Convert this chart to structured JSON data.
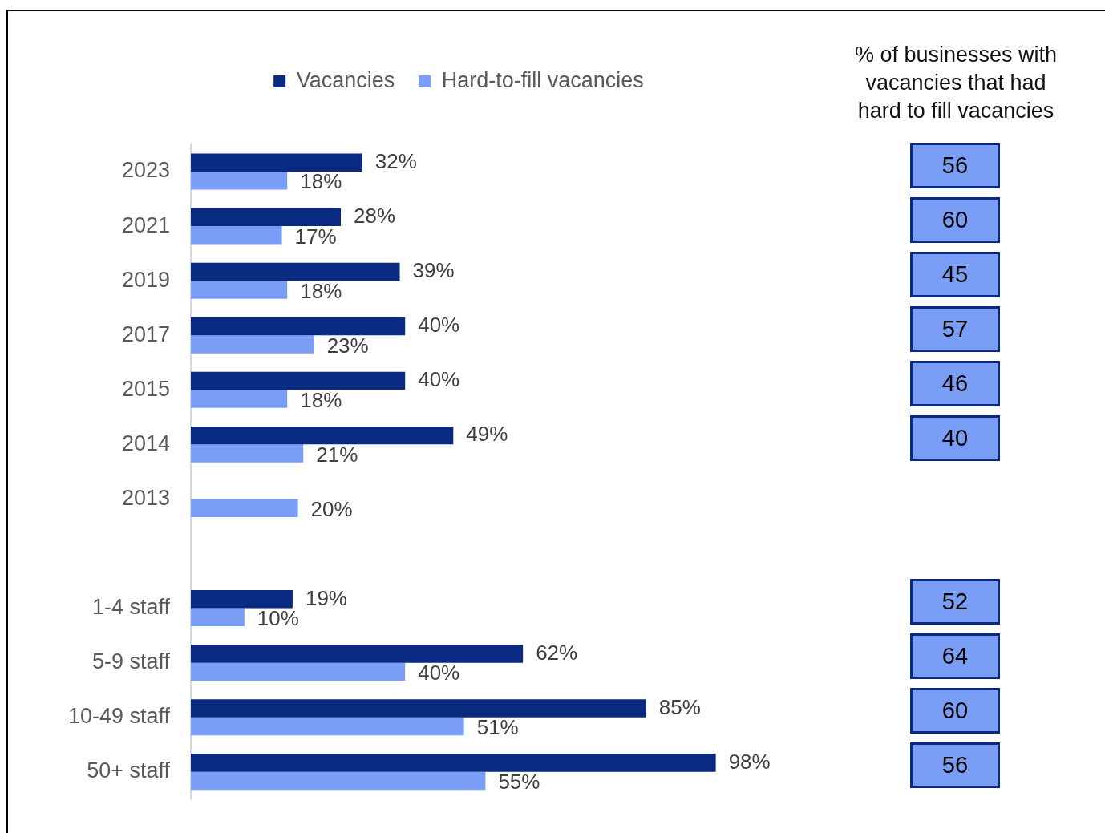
{
  "chart_data": [
    {
      "type": "bar",
      "orientation": "horizontal",
      "legend": "top",
      "tick_labels": "y",
      "categories": [
        "2023",
        "2021",
        "2019",
        "2017",
        "2015",
        "2014",
        "2013",
        null,
        "1-4 staff",
        "5-9 staff",
        "10-49 staff",
        "50+ staff"
      ],
      "series": [
        {
          "name": "Vacancies",
          "color": "#0a2a82",
          "values": [
            32,
            28,
            39,
            40,
            40,
            49,
            null,
            null,
            19,
            62,
            85,
            98
          ],
          "value_labels": [
            "32%",
            "28%",
            "39%",
            "40%",
            "40%",
            "49%",
            null,
            null,
            "19%",
            "62%",
            "85%",
            "98%"
          ]
        },
        {
          "name": "Hard-to-fill vacancies",
          "color": "#7a9df5",
          "values": [
            18,
            17,
            18,
            23,
            18,
            21,
            20,
            null,
            10,
            40,
            51,
            55
          ],
          "value_labels": [
            "18%",
            "17%",
            "18%",
            "23%",
            "18%",
            "21%",
            "20%",
            null,
            "10%",
            "40%",
            "51%",
            "55%"
          ]
        }
      ]
    },
    {
      "type": "other",
      "title": "% of businesses with vacancies that had hard to fill vacancies",
      "color": "#7a9df5",
      "data_labels": true,
      "values": [
        56,
        60,
        45,
        57,
        46,
        40,
        null,
        null,
        52,
        64,
        60,
        56
      ]
    }
  ]
}
